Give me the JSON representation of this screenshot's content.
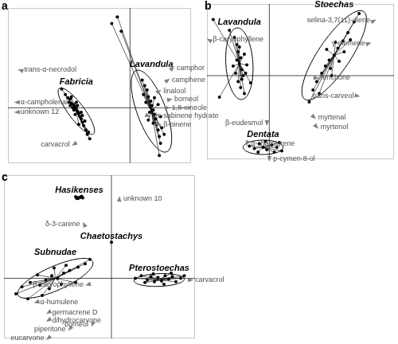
{
  "chart_data": [
    {
      "type": "scatter",
      "title": "a",
      "xlim": [
        -10,
        5
      ],
      "ylim": [
        -5,
        9
      ],
      "xticks": [
        0
      ],
      "yticks": [
        0
      ],
      "grid": true,
      "tick_labels": false,
      "series": [
        {
          "name": "Fabricia",
          "color": "#000000",
          "marker": "circle",
          "values": [
            [
              -5.6,
              1.7
            ],
            [
              -5.3,
              1.2
            ],
            [
              -5.1,
              0.9
            ],
            [
              -4.9,
              0.8
            ],
            [
              -4.8,
              0.4
            ],
            [
              -4.6,
              0.3
            ],
            [
              -4.5,
              0.1
            ],
            [
              -4.4,
              -0.1
            ],
            [
              -4.3,
              -0.3
            ],
            [
              -4.6,
              -0.2
            ],
            [
              -4.2,
              -0.5
            ],
            [
              -4.1,
              -0.8
            ],
            [
              -4.0,
              -1.0
            ],
            [
              -3.9,
              -1.3
            ],
            [
              -3.8,
              -1.6
            ],
            [
              -3.6,
              -2.0
            ],
            [
              -3.5,
              -2.4
            ],
            [
              -3.3,
              -2.8
            ],
            [
              -4.7,
              0.0
            ],
            [
              -4.3,
              0.2
            ],
            [
              -4.5,
              -0.6
            ],
            [
              -4.0,
              -0.4
            ],
            [
              -5.0,
              0.5
            ],
            [
              -3.7,
              -1.2
            ],
            [
              -4.2,
              -1.5
            ],
            [
              -3.4,
              -2.2
            ],
            [
              -4.8,
              1.0
            ],
            [
              -4.4,
              0.5
            ],
            [
              -3.9,
              -0.7
            ],
            [
              -4.9,
              0.2
            ]
          ],
          "ellipse": {
            "center": [
              -4.4,
              -0.3
            ],
            "a": [
              1.4,
              -2.05
            ],
            "b": [
              0.52,
              0.43
            ]
          }
        },
        {
          "name": "Lavandula",
          "color": "#000000",
          "marker": "circle",
          "values": [
            [
              1.0,
              2.5
            ],
            [
              1.2,
              2.0
            ],
            [
              1.4,
              1.6
            ],
            [
              1.5,
              1.0
            ],
            [
              1.7,
              0.6
            ],
            [
              1.8,
              0.2
            ],
            [
              1.9,
              -0.2
            ],
            [
              2.0,
              -0.6
            ],
            [
              2.1,
              -1.0
            ],
            [
              2.2,
              -1.5
            ],
            [
              2.3,
              -2.0
            ],
            [
              2.4,
              -2.6
            ],
            [
              2.5,
              -3.2
            ],
            [
              1.3,
              0.5
            ],
            [
              2.3,
              0.3
            ],
            [
              1.6,
              -0.4
            ],
            [
              2.5,
              -0.8
            ],
            [
              1.9,
              -1.4
            ],
            [
              2.6,
              -1.8
            ],
            [
              1.1,
              1.2
            ],
            [
              2.0,
              0.9
            ],
            [
              2.8,
              -2.4
            ],
            [
              2.4,
              -4.3
            ],
            [
              1.5,
              -1.1
            ],
            [
              -1.5,
              7.6
            ],
            [
              -1.04,
              8.2
            ],
            [
              -0.72,
              6.9
            ]
          ],
          "ellipse": {
            "center": [
              1.76,
              -0.3
            ],
            "a": [
              1.24,
              -3.67
            ],
            "b": [
              1.1,
              0.45
            ]
          }
        }
      ],
      "loadings": [
        {
          "label": "trans-α-necrodol",
          "x": -9.0,
          "y": 3.4
        },
        {
          "label": "α-campholenal",
          "x": -9.3,
          "y": 0.5
        },
        {
          "label": "unknown 12",
          "x": -9.3,
          "y": -0.4
        },
        {
          "label": "carvacrol",
          "x": -4.6,
          "y": -3.3
        },
        {
          "label": "camphor",
          "x": 3.5,
          "y": 3.6
        },
        {
          "label": "camphene",
          "x": 3.1,
          "y": 2.5
        },
        {
          "label": "linalool",
          "x": 2.4,
          "y": 1.5
        },
        {
          "label": "borneol",
          "x": 3.3,
          "y": 0.75
        },
        {
          "label": "1,8-cineole",
          "x": 3.1,
          "y": 0.0
        },
        {
          "label": "cis-sabinene hydrate",
          "x": 1.5,
          "y": -0.75
        },
        {
          "label": "β-pinene",
          "x": 2.4,
          "y": -1.5
        }
      ]
    },
    {
      "type": "scatter",
      "title": "b",
      "xlim": [
        -5,
        10
      ],
      "ylim": [
        -7,
        6
      ],
      "xticks": [
        0
      ],
      "yticks": [
        0
      ],
      "grid": true,
      "tick_labels": false,
      "series": [
        {
          "name": "Lavandula",
          "color": "#000000",
          "marker": "circle",
          "values": [
            [
              -2.8,
              3.2
            ],
            [
              -2.6,
              2.6
            ],
            [
              -2.5,
              2.0
            ],
            [
              -2.3,
              1.5
            ],
            [
              -2.4,
              1.0
            ],
            [
              -2.2,
              0.5
            ],
            [
              -2.1,
              0.0
            ],
            [
              -2.5,
              -0.5
            ],
            [
              -2.3,
              -1.0
            ],
            [
              -2.0,
              -1.5
            ],
            [
              -2.6,
              1.3
            ],
            [
              -2.0,
              1.8
            ],
            [
              -2.9,
              0.8
            ],
            [
              -1.8,
              0.9
            ],
            [
              -2.2,
              -0.3
            ],
            [
              -2.7,
              0.2
            ],
            [
              -2.4,
              2.4
            ],
            [
              -1.9,
              0.2
            ],
            [
              -4.5,
              4.7
            ],
            [
              -4.0,
              -1.8
            ],
            [
              -3.2,
              3.8
            ],
            [
              -1.5,
              -0.6
            ]
          ],
          "ellipse": {
            "center": [
              -2.4,
              1.0
            ],
            "a": [
              0.19,
              -3.0
            ],
            "b": [
              1.08,
              0.1
            ]
          }
        },
        {
          "name": "Stoechas",
          "color": "#000000",
          "marker": "circle",
          "values": [
            [
              3.5,
              -1.2
            ],
            [
              3.8,
              -0.5
            ],
            [
              4.2,
              0.2
            ],
            [
              4.5,
              0.8
            ],
            [
              4.8,
              1.3
            ],
            [
              5.2,
              1.7
            ],
            [
              5.5,
              2.3
            ],
            [
              5.9,
              2.9
            ],
            [
              6.3,
              3.6
            ],
            [
              6.8,
              4.5
            ],
            [
              4.9,
              0.6
            ],
            [
              5.6,
              1.2
            ],
            [
              4.6,
              2.2
            ],
            [
              5.3,
              2.8
            ],
            [
              6.0,
              2.0
            ],
            [
              4.0,
              -1.5
            ],
            [
              7.2,
              5.2
            ],
            [
              3.2,
              -2.2
            ],
            [
              5.0,
              0.0
            ],
            [
              6.5,
              3.0
            ]
          ],
          "ellipse": {
            "center": [
              5.2,
              1.7
            ],
            "a": [
              2.36,
              3.67
            ],
            "b": [
              1.07,
              -0.75
            ]
          }
        },
        {
          "name": "Dentata",
          "color": "#000000",
          "marker": "circle",
          "values": [
            [
              -1.6,
              -5.9
            ],
            [
              -1.2,
              -6.1
            ],
            [
              -0.8,
              -5.7
            ],
            [
              -0.5,
              -6.0
            ],
            [
              -0.2,
              -6.2
            ],
            [
              0.2,
              -5.8
            ],
            [
              0.6,
              -6.0
            ],
            [
              1.0,
              -6.3
            ],
            [
              0.4,
              -6.4
            ],
            [
              -0.9,
              -6.4
            ],
            [
              0.8,
              -5.6
            ],
            [
              -0.3,
              -5.5
            ]
          ],
          "ellipse": {
            "center": [
              -0.5,
              -6.0
            ],
            "a": [
              1.6,
              0
            ],
            "b": [
              0,
              0.6
            ]
          }
        }
      ],
      "loadings": [
        {
          "label": "β-caryophyllene",
          "x": -4.85,
          "y": 3.0
        },
        {
          "label": "selina-3,7(11)-diene",
          "x": 8.4,
          "y": 4.6
        },
        {
          "label": "γ-elemene",
          "x": 8.0,
          "y": 2.7
        },
        {
          "label": "fenchone",
          "x": 3.8,
          "y": -0.2
        },
        {
          "label": "trans-carveol",
          "x": 7.1,
          "y": -1.7
        },
        {
          "label": "myrtenal",
          "x": 3.6,
          "y": -3.5
        },
        {
          "label": "myrtenol",
          "x": 3.8,
          "y": -4.3
        },
        {
          "label": "β-eudesmol",
          "x": -0.2,
          "y": -4.0
        },
        {
          "label": "α-chamigrene",
          "x": -1.8,
          "y": -5.7
        },
        {
          "label": "p-cymen-8-ol",
          "x": 0.0,
          "y": -7.0
        }
      ]
    },
    {
      "type": "scatter",
      "title": "c",
      "xlim": [
        -9,
        7
      ],
      "ylim": [
        -7,
        12
      ],
      "xticks": [
        0
      ],
      "yticks": [
        0
      ],
      "grid": true,
      "tick_labels": false,
      "series": [
        {
          "name": "Hasikenses",
          "color": "#000000",
          "marker": "circle",
          "values": [
            [
              -3.0,
              9.5
            ],
            [
              -2.8,
              9.3
            ],
            [
              -2.6,
              9.45
            ],
            [
              -2.4,
              9.35
            ],
            [
              -2.9,
              9.3
            ],
            [
              -2.5,
              9.55
            ]
          ],
          "ellipse": {
            "center": [
              -2.7,
              9.4
            ],
            "a": [
              0.35,
              0
            ],
            "b": [
              0,
              0.15
            ]
          }
        },
        {
          "name": "Chaetostachys",
          "color": "#000000",
          "marker": "circle",
          "values": [
            [
              0,
              4.2
            ]
          ]
        },
        {
          "name": "Subnudae",
          "color": "#000000",
          "marker": "circle",
          "values": [
            [
              -7.5,
              -1.0
            ],
            [
              -6.8,
              -0.5
            ],
            [
              -6.0,
              -0.8
            ],
            [
              -5.5,
              -0.2
            ],
            [
              -5.0,
              0.3
            ],
            [
              -4.5,
              0.0
            ],
            [
              -4.0,
              0.6
            ],
            [
              -3.5,
              0.9
            ],
            [
              -2.8,
              1.3
            ],
            [
              -2.2,
              1.7
            ],
            [
              -5.2,
              -1.2
            ],
            [
              -4.2,
              -0.7
            ],
            [
              -3.8,
              1.5
            ],
            [
              -6.2,
              0.4
            ],
            [
              -8.0,
              -1.8
            ],
            [
              -4.8,
              1.2
            ],
            [
              -3.0,
              -0.5
            ],
            [
              -1.8,
              2.2
            ],
            [
              -5.8,
              -2.0
            ],
            [
              -7.0,
              -2.4
            ]
          ],
          "ellipse": {
            "center": [
              -4.7,
              0.0
            ],
            "a": [
              3.13,
              1.94
            ],
            "b": [
              0.41,
              -1.27
            ]
          }
        },
        {
          "name": "Pterostoechas",
          "color": "#000000",
          "marker": "circle",
          "values": [
            [
              2.0,
              0.0
            ],
            [
              2.5,
              0.3
            ],
            [
              3.0,
              -0.2
            ],
            [
              3.3,
              0.2
            ],
            [
              3.6,
              -0.4
            ],
            [
              3.9,
              0.1
            ],
            [
              4.2,
              -0.3
            ],
            [
              4.5,
              0.3
            ],
            [
              4.8,
              -0.1
            ],
            [
              5.1,
              0.2
            ],
            [
              5.4,
              -0.4
            ],
            [
              5.8,
              0.0
            ],
            [
              6.1,
              0.3
            ],
            [
              3.5,
              0.5
            ],
            [
              4.4,
              -0.7
            ],
            [
              2.8,
              -0.5
            ],
            [
              5.0,
              0.6
            ]
          ],
          "ellipse": {
            "center": [
              4.0,
              -0.2
            ],
            "a": [
              2.1,
              0.1
            ],
            "b": [
              0,
              0.74
            ]
          }
        }
      ],
      "loadings": [
        {
          "label": "unknown 10",
          "x": 0.67,
          "y": 9.3
        },
        {
          "label": "δ-3-carene",
          "x": -2.3,
          "y": 6.3
        },
        {
          "label": "carvacrol",
          "x": 6.67,
          "y": -0.2
        },
        {
          "label": "β-caryophyllene",
          "x": -2.0,
          "y": -0.74
        },
        {
          "label": "α-humulene",
          "x": -6.3,
          "y": -2.8
        },
        {
          "label": "germacrene D",
          "x": -5.3,
          "y": -4.0
        },
        {
          "label": "dihydrocarvone",
          "x": -5.3,
          "y": -4.9
        },
        {
          "label": "piperitone",
          "x": -3.5,
          "y": -5.9
        },
        {
          "label": "borneol",
          "x": -1.6,
          "y": -5.4
        },
        {
          "label": "eucarvone",
          "x": -5.3,
          "y": -7.0
        }
      ]
    }
  ]
}
